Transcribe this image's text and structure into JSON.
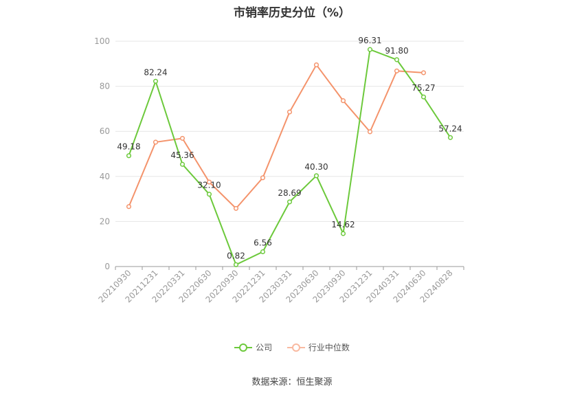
{
  "chart_data": {
    "type": "line",
    "title": "市销率历史分位（%）",
    "categories": [
      "20210930",
      "20211231",
      "20220331",
      "20220630",
      "20220930",
      "20221231",
      "20230331",
      "20230630",
      "20230930",
      "20231231",
      "20240331",
      "20240630",
      "20240828"
    ],
    "ylim": [
      0,
      100
    ],
    "yticks": [
      0,
      20,
      40,
      60,
      80,
      100
    ],
    "grid": true,
    "legend_position": "bottom",
    "series": [
      {
        "name": "公司",
        "color": "#6cc93b",
        "values": [
          49.18,
          82.24,
          45.36,
          32.1,
          0.82,
          6.56,
          28.69,
          40.3,
          14.62,
          96.31,
          91.8,
          75.27,
          57.24
        ],
        "labels": [
          "49.18",
          "82.24",
          "45.36",
          "32.10",
          "0.82",
          "6.56",
          "28.69",
          "40.30",
          "14.62",
          "96.31",
          "91.80",
          "75.27",
          "57.24"
        ]
      },
      {
        "name": "行业中位数",
        "color": "#f4936b",
        "values": [
          26.6,
          55.2,
          56.9,
          37.5,
          25.8,
          39.4,
          68.6,
          89.5,
          73.6,
          59.8,
          86.8,
          86.0,
          null
        ]
      }
    ]
  },
  "source": "数据来源：恒生聚源"
}
